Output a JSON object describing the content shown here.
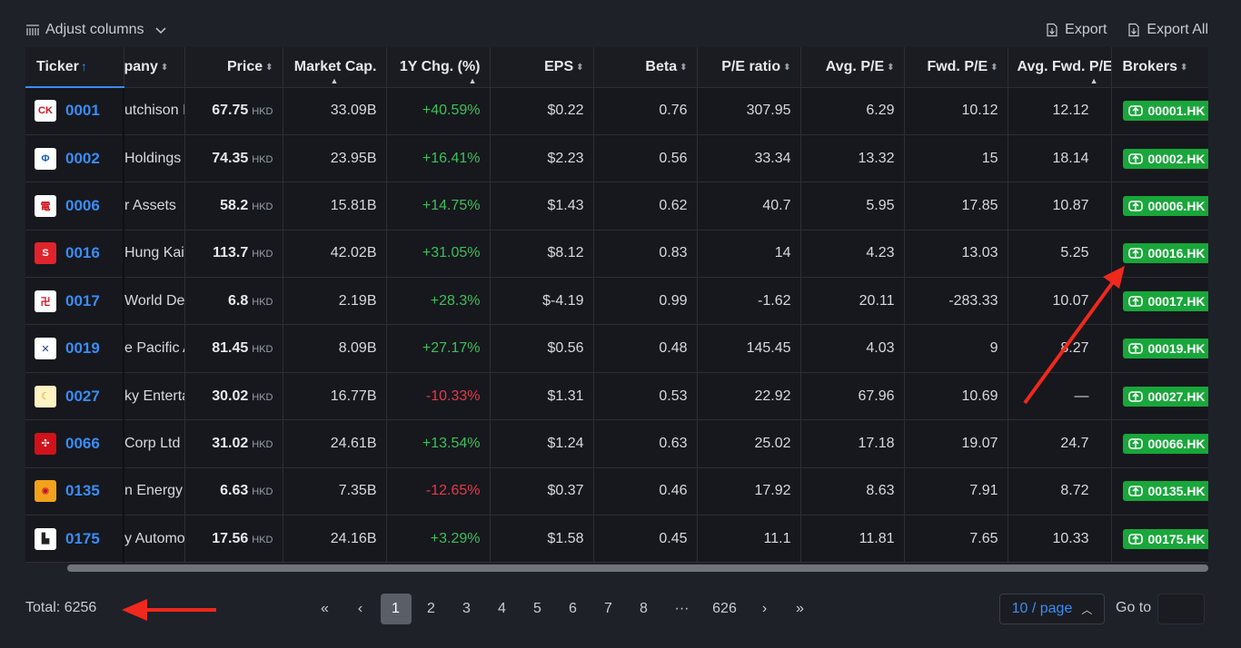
{
  "toolbar": {
    "adjust_columns_label": "Adjust columns",
    "export_label": "Export",
    "export_all_label": "Export All"
  },
  "table": {
    "headers": {
      "ticker": "Ticker",
      "company": "pany",
      "price": "Price",
      "market_cap": "Market Cap.",
      "chg_1y": "1Y Chg. (%)",
      "eps": "EPS",
      "beta": "Beta",
      "pe": "P/E ratio",
      "avg_pe": "Avg. P/E",
      "fwd_pe": "Fwd. P/E",
      "avg_fwd_pe": "Avg. Fwd. P/E",
      "brokers": "Brokers"
    },
    "sort_asc_glyph": "↑",
    "sort_both_glyph": "⬍",
    "currency": "HKD",
    "rows": [
      {
        "ticker": "0001",
        "company": "utchison I",
        "price": "67.75",
        "market_cap": "33.09B",
        "chg": "+40.59%",
        "chg_dir": "pos",
        "eps": "$0.22",
        "beta": "0.76",
        "pe": "307.95",
        "avg_pe": "6.29",
        "fwd_pe": "10.12",
        "avg_fwd_pe": "12.12",
        "broker": "00001.HK",
        "logo_color": "#ffffff",
        "logo_fg": "#d0121b",
        "logo_glyph": "CK"
      },
      {
        "ticker": "0002",
        "company": "Holdings",
        "price": "74.35",
        "market_cap": "23.95B",
        "chg": "+16.41%",
        "chg_dir": "pos",
        "eps": "$2.23",
        "beta": "0.56",
        "pe": "33.34",
        "avg_pe": "13.32",
        "fwd_pe": "15",
        "avg_fwd_pe": "18.14",
        "broker": "00002.HK",
        "logo_color": "#ffffff",
        "logo_fg": "#1b5fae",
        "logo_glyph": "Φ"
      },
      {
        "ticker": "0006",
        "company": "r Assets",
        "price": "58.2",
        "market_cap": "15.81B",
        "chg": "+14.75%",
        "chg_dir": "pos",
        "eps": "$1.43",
        "beta": "0.62",
        "pe": "40.7",
        "avg_pe": "5.95",
        "fwd_pe": "17.85",
        "avg_fwd_pe": "10.87",
        "broker": "00006.HK",
        "logo_color": "#ffffff",
        "logo_fg": "#d0121b",
        "logo_glyph": "電"
      },
      {
        "ticker": "0016",
        "company": "Hung Kai I",
        "price": "113.7",
        "market_cap": "42.02B",
        "chg": "+31.05%",
        "chg_dir": "pos",
        "eps": "$8.12",
        "beta": "0.83",
        "pe": "14",
        "avg_pe": "4.23",
        "fwd_pe": "13.03",
        "avg_fwd_pe": "5.25",
        "broker": "00016.HK",
        "logo_color": "#e0242b",
        "logo_fg": "#ffffff",
        "logo_glyph": "S"
      },
      {
        "ticker": "0017",
        "company": "World De",
        "price": "6.8",
        "market_cap": "2.19B",
        "chg": "+28.3%",
        "chg_dir": "pos",
        "eps": "$-4.19",
        "beta": "0.99",
        "pe": "-1.62",
        "avg_pe": "20.11",
        "fwd_pe": "-283.33",
        "avg_fwd_pe": "10.07",
        "broker": "00017.HK",
        "logo_color": "#ffffff",
        "logo_fg": "#d0121b",
        "logo_glyph": "卍"
      },
      {
        "ticker": "0019",
        "company": "e Pacific A",
        "price": "81.45",
        "market_cap": "8.09B",
        "chg": "+27.17%",
        "chg_dir": "pos",
        "eps": "$0.56",
        "beta": "0.48",
        "pe": "145.45",
        "avg_pe": "4.03",
        "fwd_pe": "9",
        "avg_fwd_pe": "8.27",
        "broker": "00019.HK",
        "logo_color": "#ffffff",
        "logo_fg": "#1b3d8f",
        "logo_glyph": "✕"
      },
      {
        "ticker": "0027",
        "company": "ky Enterta",
        "price": "30.02",
        "market_cap": "16.77B",
        "chg": "-10.33%",
        "chg_dir": "neg",
        "eps": "$1.31",
        "beta": "0.53",
        "pe": "22.92",
        "avg_pe": "67.96",
        "fwd_pe": "10.69",
        "avg_fwd_pe": "—",
        "broker": "00027.HK",
        "logo_color": "#fff3c4",
        "logo_fg": "#d1a21a",
        "logo_glyph": "☾"
      },
      {
        "ticker": "0066",
        "company": "Corp Ltd",
        "price": "31.02",
        "market_cap": "24.61B",
        "chg": "+13.54%",
        "chg_dir": "pos",
        "eps": "$1.24",
        "beta": "0.63",
        "pe": "25.02",
        "avg_pe": "17.18",
        "fwd_pe": "19.07",
        "avg_fwd_pe": "24.7",
        "broker": "00066.HK",
        "logo_color": "#d0121b",
        "logo_fg": "#ffffff",
        "logo_glyph": "✣"
      },
      {
        "ticker": "0135",
        "company": "n Energy",
        "price": "6.63",
        "market_cap": "7.35B",
        "chg": "-12.65%",
        "chg_dir": "neg",
        "eps": "$0.37",
        "beta": "0.46",
        "pe": "17.92",
        "avg_pe": "8.63",
        "fwd_pe": "7.91",
        "avg_fwd_pe": "8.72",
        "broker": "00135.HK",
        "logo_color": "#f2a21b",
        "logo_fg": "#c8102e",
        "logo_glyph": "✺"
      },
      {
        "ticker": "0175",
        "company": "y Automo",
        "price": "17.56",
        "market_cap": "24.16B",
        "chg": "+3.29%",
        "chg_dir": "pos",
        "eps": "$1.58",
        "beta": "0.45",
        "pe": "11.1",
        "avg_pe": "11.81",
        "fwd_pe": "7.65",
        "avg_fwd_pe": "10.33",
        "broker": "00175.HK",
        "logo_color": "#ffffff",
        "logo_fg": "#222222",
        "logo_glyph": "▙"
      }
    ]
  },
  "footer": {
    "total_label": "Total: 6256",
    "pages": [
      "1",
      "2",
      "3",
      "4",
      "5",
      "6",
      "7",
      "8"
    ],
    "ellipsis": "···",
    "last_page": "626",
    "current_page": "1",
    "first_glyph": "«",
    "prev_glyph": "‹",
    "next_glyph": "›",
    "last_glyph": "»",
    "per_page_label": "10 / page",
    "goto_label": "Go to",
    "goto_value": ""
  },
  "colors": {
    "accent": "#3b8cf5",
    "positive": "#3fbf5a",
    "negative": "#e5394a",
    "broker_bg": "#19a63a",
    "annotation_arrow": "#f0281e"
  }
}
